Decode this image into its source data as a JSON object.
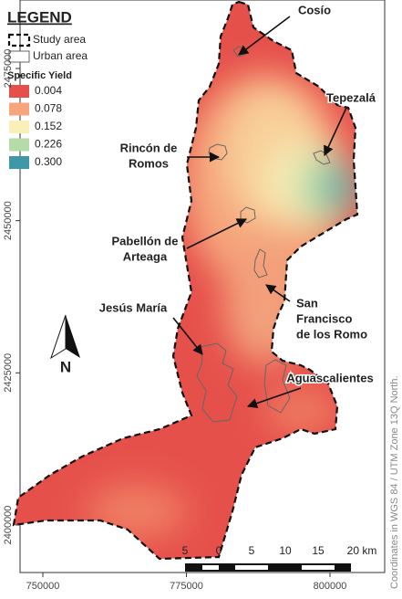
{
  "legend": {
    "title": "LEGEND",
    "items": [
      "Study area",
      "Urban area"
    ],
    "scale_title": "Specific Yield",
    "scale_values": [
      "0.004",
      "0.078",
      "0.152",
      "0.226",
      "0.300"
    ]
  },
  "places": [
    {
      "lines": [
        "Cosío"
      ]
    },
    {
      "lines": [
        "Tepezalá"
      ]
    },
    {
      "lines": [
        "Rincón de",
        "Romos"
      ]
    },
    {
      "lines": [
        "Pabellón de",
        "Arteaga"
      ]
    },
    {
      "lines": [
        "Jesús María"
      ]
    },
    {
      "lines": [
        "San",
        "Francisco",
        "de los Romo"
      ]
    },
    {
      "lines": [
        "Aguascalientes"
      ]
    }
  ],
  "axes": {
    "xticks": [
      750000,
      775000,
      800000
    ],
    "yticks": [
      2475000,
      2450000,
      2425000,
      2400000
    ]
  },
  "scale_bar": {
    "labels": [
      "5",
      "0",
      "5",
      "10",
      "15",
      "20 km"
    ]
  },
  "north": "N",
  "crs_note": "Coordinates in WGS 84 / UTM Zone 13Q North."
}
